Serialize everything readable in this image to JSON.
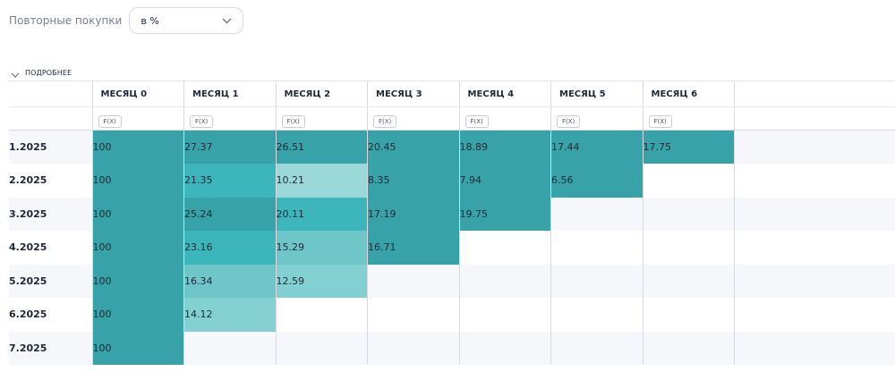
{
  "filter": {
    "label": "Повторные покупки",
    "value": "в %"
  },
  "details": {
    "label": "ПОДРОБНЕЕ"
  },
  "fx_label": "F(X)",
  "months": [
    "МЕСЯЦ 0",
    "МЕСЯЦ 1",
    "МЕСЯЦ 2",
    "МЕСЯЦ 3",
    "МЕСЯЦ 4",
    "МЕСЯЦ 5",
    "МЕСЯЦ 6"
  ],
  "rows": [
    {
      "cohort": "1.2025",
      "values": [
        "100",
        "27.37",
        "26.51",
        "20.45",
        "18.89",
        "17.44",
        "17.75"
      ],
      "shades": [
        "dark",
        "dark",
        "dark",
        "dark",
        "dark",
        "dark",
        "dark"
      ]
    },
    {
      "cohort": "2.2025",
      "values": [
        "100",
        "21.35",
        "10.21",
        "8.35",
        "7.94",
        "6.56"
      ],
      "shades": [
        "dark",
        "mid",
        "faint",
        "dark",
        "dark",
        "dark"
      ]
    },
    {
      "cohort": "3.2025",
      "values": [
        "100",
        "25.24",
        "20.11",
        "17.19",
        "19.75"
      ],
      "shades": [
        "dark",
        "dark",
        "mid",
        "dark",
        "dark"
      ]
    },
    {
      "cohort": "4.2025",
      "values": [
        "100",
        "23.16",
        "15.29",
        "16.71"
      ],
      "shades": [
        "dark",
        "mid",
        "light",
        "dark"
      ]
    },
    {
      "cohort": "5.2025",
      "values": [
        "100",
        "16.34",
        "12.59"
      ],
      "shades": [
        "dark",
        "light",
        "lighter"
      ]
    },
    {
      "cohort": "6.2025",
      "values": [
        "100",
        "14.12"
      ],
      "shades": [
        "dark",
        "lighter"
      ]
    },
    {
      "cohort": "7.2025",
      "values": [
        "100"
      ],
      "shades": [
        "dark"
      ]
    }
  ],
  "colors": {
    "dark": "#37a3a8",
    "mid": "#3cb6bb",
    "light": "#6fc6c9",
    "lighter": "#83d0d2",
    "faint": "#9bd8da"
  },
  "icons": {
    "select": "chevron-down-icon",
    "details": "chevron-down-icon"
  }
}
